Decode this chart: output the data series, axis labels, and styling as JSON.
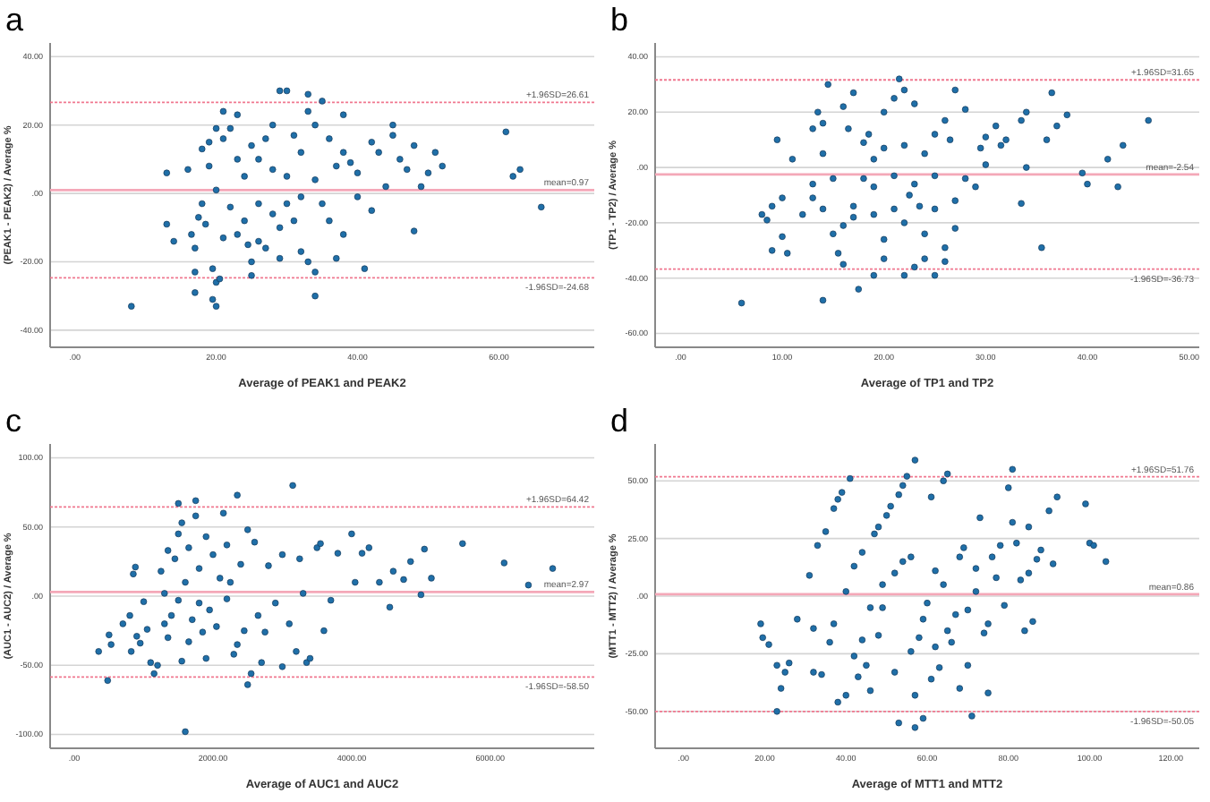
{
  "chart_data": [
    {
      "type": "scatter",
      "title": "a",
      "xlabel": "Average of PEAK1 and PEAK2",
      "ylabel": "(PEAK1 - PEAK2) / Average %",
      "xlim": [
        -3.5,
        73.5
      ],
      "ylim": [
        -45,
        44
      ],
      "xticks": [
        {
          "value": 0,
          "label": ".00"
        },
        {
          "value": 20,
          "label": "20.00"
        },
        {
          "value": 40,
          "label": "40.00"
        },
        {
          "value": 60,
          "label": "60.00"
        }
      ],
      "yticks": [
        {
          "value": -40,
          "label": "-40.00"
        },
        {
          "value": -20,
          "label": "-20.00"
        },
        {
          "value": 0,
          "label": ".00"
        },
        {
          "value": 20,
          "label": "20.00"
        },
        {
          "value": 40,
          "label": "40.00"
        }
      ],
      "grid": "y",
      "marker": "circle",
      "ref_lines": [
        {
          "axis": "y",
          "value": 26.61,
          "label": "+1.96SD=26.61",
          "color": "#f07890",
          "line_style": "dotted"
        },
        {
          "axis": "y",
          "value": 0.97,
          "label": "mean=0.97",
          "color": "#f4a8b8",
          "line_style": "solid"
        },
        {
          "axis": "y",
          "value": -24.68,
          "label": "-1.96SD=-24.68",
          "color": "#f07890",
          "line_style": "dotted"
        }
      ],
      "series": [
        {
          "color": "#1f6fa8",
          "x": [
            8,
            13,
            13,
            14,
            16,
            16.5,
            17,
            17,
            17,
            17.5,
            18,
            18,
            18.5,
            19,
            19,
            19.5,
            19.5,
            20,
            20,
            20,
            20,
            20.5,
            21,
            21,
            21,
            22,
            22,
            23,
            23,
            23,
            24,
            24,
            24.5,
            25,
            25,
            25,
            26,
            26,
            26,
            27,
            27,
            28,
            28,
            28,
            29,
            29,
            29,
            30,
            30,
            30,
            31,
            31,
            32,
            32,
            32,
            33,
            33,
            33,
            34,
            34,
            34,
            34,
            35,
            35,
            36,
            36,
            37,
            37,
            38,
            38,
            38,
            39,
            40,
            40,
            41,
            42,
            42,
            43,
            44,
            45,
            45,
            46,
            47,
            48,
            48,
            49,
            50,
            51,
            52,
            61,
            62,
            63,
            66
          ],
          "values": [
            -33,
            6,
            -9,
            -14,
            7,
            -12,
            -16,
            -23,
            -29,
            -7,
            13,
            -3,
            -9,
            8,
            15,
            -22,
            -31,
            19,
            -33,
            -26,
            1,
            -25,
            24,
            16,
            -13,
            19,
            -4,
            23,
            10,
            -12,
            -8,
            5,
            -15,
            14,
            -20,
            -24,
            10,
            -3,
            -14,
            16,
            -16,
            20,
            -6,
            7,
            30,
            -10,
            -19,
            30,
            5,
            -3,
            17,
            -8,
            12,
            -1,
            -17,
            24,
            -20,
            29,
            20,
            4,
            -23,
            -30,
            27,
            -3,
            16,
            -8,
            8,
            -19,
            23,
            12,
            -12,
            9,
            6,
            -1,
            -22,
            15,
            -5,
            12,
            2,
            20,
            17,
            10,
            7,
            14,
            -11,
            2,
            6,
            12,
            8,
            18,
            5,
            7,
            -4
          ]
        }
      ]
    },
    {
      "type": "scatter",
      "title": "b",
      "xlabel": "Average of TP1 and TP2",
      "ylabel": "(TP1 - TP2) / Average %",
      "xlim": [
        -2.5,
        51
      ],
      "ylim": [
        -65,
        45
      ],
      "xticks": [
        {
          "value": 0,
          "label": ".00"
        },
        {
          "value": 10,
          "label": "10.00"
        },
        {
          "value": 20,
          "label": "20.00"
        },
        {
          "value": 30,
          "label": "30.00"
        },
        {
          "value": 40,
          "label": "40.00"
        },
        {
          "value": 50,
          "label": "50.00"
        }
      ],
      "yticks": [
        {
          "value": -60,
          "label": "-60.00"
        },
        {
          "value": -40,
          "label": "-40.00"
        },
        {
          "value": -20,
          "label": "-20.00"
        },
        {
          "value": 0,
          "label": ".00"
        },
        {
          "value": 20,
          "label": "20.00"
        },
        {
          "value": 40,
          "label": "40.00"
        }
      ],
      "grid": "y",
      "marker": "circle",
      "ref_lines": [
        {
          "axis": "y",
          "value": 31.65,
          "label": "+1.96SD=31.65",
          "color": "#f07890",
          "line_style": "dotted"
        },
        {
          "axis": "y",
          "value": -2.54,
          "label": "mean=-2.54",
          "color": "#f4a8b8",
          "line_style": "solid"
        },
        {
          "axis": "y",
          "value": -36.73,
          "label": "-1.96SD=-36.73",
          "color": "#f07890",
          "line_style": "dotted"
        }
      ],
      "series": [
        {
          "color": "#1f6fa8",
          "x": [
            6,
            8,
            8.5,
            9,
            9,
            9.5,
            10,
            10,
            10.5,
            11,
            12,
            13,
            13,
            13,
            13.5,
            14,
            14,
            14,
            14,
            14.5,
            15,
            15,
            15.5,
            16,
            16,
            16,
            16.5,
            17,
            17,
            17,
            17.5,
            18,
            18,
            18.5,
            19,
            19,
            19,
            19,
            20,
            20,
            20,
            20,
            21,
            21,
            21,
            21.5,
            22,
            22,
            22,
            22,
            22.5,
            23,
            23,
            23,
            23.5,
            24,
            24,
            24,
            25,
            25,
            25,
            25,
            26,
            26,
            26,
            26.5,
            27,
            27,
            27,
            28,
            28,
            29,
            29.5,
            30,
            30,
            31,
            31.5,
            32,
            33.5,
            33.5,
            34,
            34,
            35.5,
            36,
            36.5,
            37,
            38,
            39.5,
            40,
            42,
            43,
            43.5,
            46
          ],
          "values": [
            -49,
            -17,
            -19,
            -14,
            -30,
            10,
            -25,
            -11,
            -31,
            3,
            -17,
            14,
            -6,
            -11,
            20,
            16,
            5,
            -15,
            -48,
            30,
            -4,
            -24,
            -31,
            22,
            -21,
            -35,
            14,
            -14,
            -18,
            27,
            -44,
            9,
            -4,
            12,
            3,
            -7,
            -17,
            -39,
            20,
            7,
            -33,
            -26,
            25,
            -3,
            -15,
            32,
            28,
            -20,
            -39,
            8,
            -10,
            23,
            -6,
            -36,
            -14,
            5,
            -24,
            -33,
            12,
            -3,
            -15,
            -39,
            17,
            -29,
            -34,
            10,
            28,
            -12,
            -22,
            -4,
            21,
            -7,
            7,
            11,
            1,
            15,
            8,
            10,
            17,
            -13,
            20,
            0,
            -29,
            10,
            27,
            15,
            19,
            -2,
            -6,
            3,
            -7,
            8,
            17
          ]
        }
      ]
    },
    {
      "type": "scatter",
      "title": "c",
      "xlabel": "Average of AUC1 and AUC2",
      "ylabel": "(AUC1 - AUC2) / Average %",
      "xlim": [
        -350,
        7500
      ],
      "ylim": [
        -110,
        110
      ],
      "xticks": [
        {
          "value": 0,
          "label": ".00"
        },
        {
          "value": 2000,
          "label": "2000.00"
        },
        {
          "value": 4000,
          "label": "4000.00"
        },
        {
          "value": 6000,
          "label": "6000.00"
        }
      ],
      "yticks": [
        {
          "value": -100,
          "label": "-100.00"
        },
        {
          "value": -50,
          "label": "-50.00"
        },
        {
          "value": 0,
          "label": ".00"
        },
        {
          "value": 50,
          "label": "50.00"
        },
        {
          "value": 100,
          "label": "100.00"
        }
      ],
      "grid": "y",
      "marker": "circle",
      "ref_lines": [
        {
          "axis": "y",
          "value": 64.42,
          "label": "+1.96SD=64.42",
          "color": "#f07890",
          "line_style": "dotted"
        },
        {
          "axis": "y",
          "value": 2.97,
          "label": "mean=2.97",
          "color": "#f4a8b8",
          "line_style": "solid"
        },
        {
          "axis": "y",
          "value": -58.5,
          "label": "-1.96SD=-58.50",
          "color": "#f07890",
          "line_style": "dotted"
        }
      ],
      "series": [
        {
          "color": "#1f6fa8",
          "x": [
            350,
            480,
            500,
            530,
            700,
            800,
            820,
            850,
            880,
            900,
            950,
            1000,
            1050,
            1100,
            1150,
            1200,
            1250,
            1300,
            1300,
            1350,
            1350,
            1400,
            1450,
            1500,
            1500,
            1500,
            1550,
            1550,
            1600,
            1600,
            1650,
            1650,
            1700,
            1750,
            1750,
            1800,
            1800,
            1850,
            1900,
            1900,
            1950,
            2000,
            2050,
            2100,
            2150,
            2200,
            2200,
            2250,
            2300,
            2350,
            2350,
            2400,
            2450,
            2500,
            2500,
            2550,
            2600,
            2650,
            2700,
            2750,
            2800,
            2900,
            3000,
            3000,
            3100,
            3150,
            3200,
            3250,
            3300,
            3350,
            3400,
            3500,
            3550,
            3600,
            3700,
            3800,
            4000,
            4050,
            4150,
            4250,
            4400,
            4550,
            4600,
            4750,
            4850,
            5000,
            5050,
            5150,
            5600,
            6200,
            6550,
            6900
          ],
          "values": [
            -40,
            -61,
            -28,
            -35,
            -20,
            -14,
            -40,
            16,
            21,
            -29,
            -34,
            -4,
            -24,
            -48,
            -56,
            -50,
            18,
            2,
            -20,
            33,
            -30,
            -14,
            27,
            -3,
            67,
            45,
            53,
            -47,
            -98,
            10,
            -33,
            35,
            -17,
            69,
            58,
            -5,
            20,
            -26,
            43,
            -45,
            -10,
            30,
            -22,
            13,
            60,
            37,
            -2,
            10,
            -42,
            73,
            -35,
            23,
            -25,
            48,
            -64,
            -56,
            39,
            -14,
            -48,
            -26,
            22,
            -5,
            30,
            -51,
            -20,
            80,
            -40,
            27,
            2,
            -48,
            -45,
            35,
            38,
            -25,
            -3,
            31,
            45,
            10,
            31,
            35,
            10,
            -8,
            18,
            12,
            25,
            1,
            34,
            13,
            38,
            24,
            8,
            20
          ]
        }
      ]
    },
    {
      "type": "scatter",
      "title": "d",
      "xlabel": "Average of MTT1 and MTT2",
      "ylabel": "(MTT1 - MTT2) / Average %",
      "xlim": [
        -7,
        127
      ],
      "ylim": [
        -66,
        66
      ],
      "xticks": [
        {
          "value": 0,
          "label": ".00"
        },
        {
          "value": 20,
          "label": "20.00"
        },
        {
          "value": 40,
          "label": "40.00"
        },
        {
          "value": 60,
          "label": "60.00"
        },
        {
          "value": 80,
          "label": "80.00"
        },
        {
          "value": 100,
          "label": "100.00"
        },
        {
          "value": 120,
          "label": "120.00"
        }
      ],
      "yticks": [
        {
          "value": -50,
          "label": "-50.00"
        },
        {
          "value": -25,
          "label": "-25.00"
        },
        {
          "value": 0,
          "label": ".00"
        },
        {
          "value": 25,
          "label": "25.00"
        },
        {
          "value": 50,
          "label": "50.00"
        }
      ],
      "grid": "y",
      "marker": "circle",
      "ref_lines": [
        {
          "axis": "y",
          "value": 51.76,
          "label": "+1.96SD=51.76",
          "color": "#f07890",
          "line_style": "dotted"
        },
        {
          "axis": "y",
          "value": 0.86,
          "label": "mean=0.86",
          "color": "#f4a8b8",
          "line_style": "solid"
        },
        {
          "axis": "y",
          "value": -50.05,
          "label": "-1.96SD=-50.05",
          "color": "#f07890",
          "line_style": "dotted"
        }
      ],
      "series": [
        {
          "color": "#1f6fa8",
          "x": [
            19,
            19.5,
            21,
            23,
            23,
            24,
            25,
            26,
            28,
            31,
            32,
            32,
            33,
            34,
            35,
            36,
            37,
            37,
            38,
            38,
            39,
            40,
            40,
            41,
            42,
            42,
            43,
            44,
            44,
            45,
            46,
            46,
            47,
            48,
            48,
            49,
            49,
            50,
            51,
            52,
            52,
            53,
            53,
            54,
            54,
            55,
            56,
            56,
            57,
            57,
            57,
            58,
            59,
            59,
            60,
            61,
            61,
            62,
            62,
            63,
            64,
            64,
            65,
            65,
            66,
            67,
            68,
            68,
            69,
            70,
            70,
            71,
            72,
            72,
            73,
            74,
            75,
            75,
            76,
            77,
            78,
            79,
            80,
            81,
            81,
            82,
            83,
            84,
            85,
            85,
            86,
            87,
            88,
            90,
            91,
            92,
            99,
            100,
            101,
            104
          ],
          "values": [
            -12,
            -18,
            -21,
            -30,
            -50,
            -40,
            -33,
            -29,
            -10,
            9,
            -14,
            -33,
            22,
            -34,
            28,
            -20,
            -12,
            38,
            42,
            -46,
            45,
            2,
            -43,
            51,
            -26,
            13,
            -35,
            -19,
            19,
            -30,
            -41,
            -5,
            27,
            -17,
            30,
            -5,
            5,
            35,
            39,
            10,
            -33,
            44,
            -55,
            48,
            15,
            52,
            -24,
            17,
            59,
            -57,
            -43,
            -18,
            -10,
            -53,
            -3,
            43,
            -36,
            11,
            -22,
            -31,
            50,
            5,
            -15,
            53,
            -20,
            -8,
            17,
            -40,
            21,
            -6,
            -30,
            -52,
            12,
            2,
            34,
            -16,
            -42,
            -12,
            17,
            8,
            22,
            -4,
            47,
            55,
            32,
            23,
            7,
            -15,
            30,
            10,
            -11,
            16,
            20,
            37,
            14,
            43,
            40,
            23,
            22,
            15
          ]
        }
      ]
    }
  ]
}
